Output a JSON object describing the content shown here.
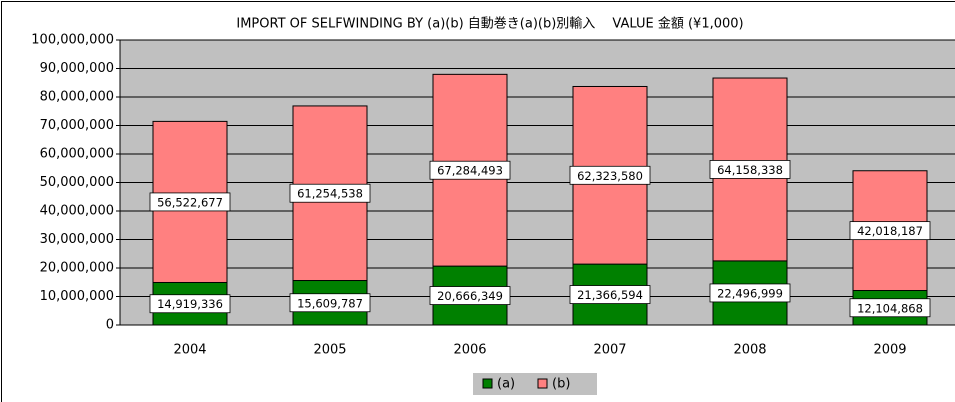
{
  "chart_data": {
    "type": "stacked_bar",
    "title": "IMPORT OF SELFWINDING BY (a)(b)  自動巻き(a)(b)別輸入　 VALUE  金額 (¥1,000)",
    "categories": [
      "2004",
      "2005",
      "2006",
      "2007",
      "2008",
      "2009"
    ],
    "series": [
      {
        "name": "(a)",
        "color": "#008000",
        "values": [
          14919336,
          15609787,
          20666349,
          21366594,
          22496999,
          12104868
        ],
        "value_labels": [
          "14,919,336",
          "15,609,787",
          "20,666,349",
          "21,366,594",
          "22,496,999",
          "12,104,868"
        ]
      },
      {
        "name": "(b)",
        "color": "#ff8080",
        "values": [
          56522677,
          61254538,
          67284493,
          62323580,
          64158338,
          42018187
        ],
        "value_labels": [
          "56,522,677",
          "61,254,538",
          "67,284,493",
          "62,323,580",
          "64,158,338",
          "42,018,187"
        ]
      }
    ],
    "ylim": [
      0,
      100000000
    ],
    "yticks": [
      0,
      {
        "value": 10000000,
        "label": "10,000,000"
      },
      {
        "value": 20000000,
        "label": "20,000,000"
      },
      {
        "value": 30000000,
        "label": "30,000,000"
      },
      {
        "value": 40000000,
        "label": "40,000,000"
      },
      {
        "value": 50000000,
        "label": "50,000,000"
      },
      {
        "value": 60000000,
        "label": "60,000,000"
      },
      {
        "value": 70000000,
        "label": "70,000,000"
      },
      {
        "value": 80000000,
        "label": "80,000,000"
      },
      {
        "value": 90000000,
        "label": "90,000,000"
      },
      {
        "value": 100000000,
        "label": "100,000,000"
      }
    ],
    "grid": true,
    "legend": "bottom",
    "plot_background": "#c0c0c0"
  }
}
